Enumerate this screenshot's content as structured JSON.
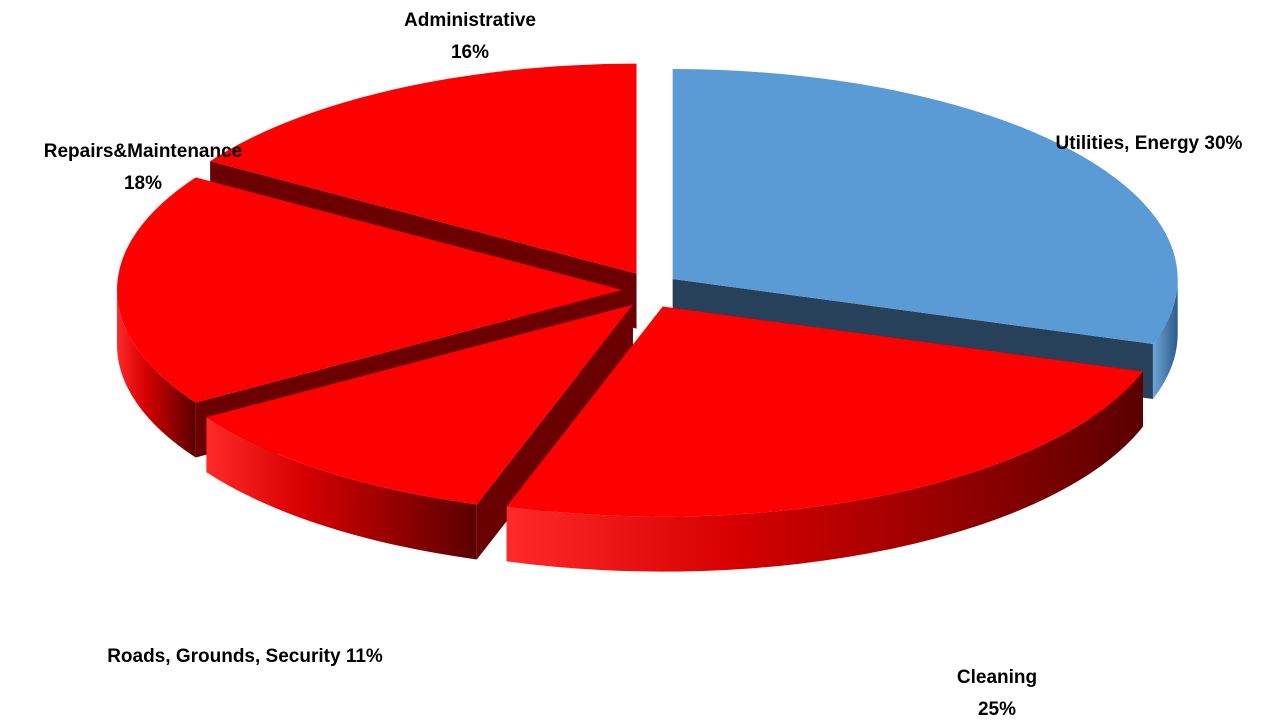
{
  "chart_data": {
    "type": "pie",
    "style": "3d-exploded",
    "slices": [
      {
        "label": "Utilities, Energy",
        "value": 30,
        "value_label": "30%",
        "color": "#5b9bd5"
      },
      {
        "label": "Cleaning",
        "value": 25,
        "value_label": "25%",
        "color": "#ff0000"
      },
      {
        "label": "Roads, Grounds, Security",
        "value": 11,
        "value_label": "11%",
        "color": "#ff0000"
      },
      {
        "label": "Repairs&Maintenance",
        "value": 18,
        "value_label": "18%",
        "color": "#ff0000"
      },
      {
        "label": "Administrative",
        "value": 16,
        "value_label": "16%",
        "color": "#ff0000"
      }
    ]
  }
}
